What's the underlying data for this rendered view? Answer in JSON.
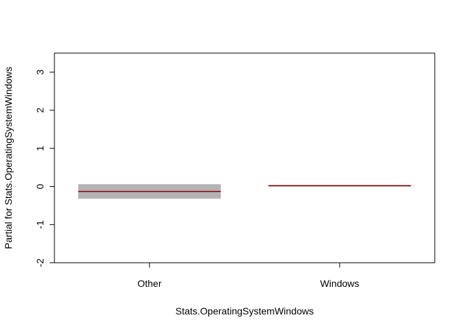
{
  "chart_data": {
    "type": "termplot",
    "xlabel": "Stats.OperatingSystemWindows",
    "ylabel": "Partial for Stats.OperatingSystemWindows",
    "ylim": [
      -2,
      3.5
    ],
    "y_ticks": [
      -2,
      -1,
      0,
      1,
      2,
      3
    ],
    "categories": [
      "Other",
      "Windows"
    ],
    "estimates": [
      -0.13,
      0.02
    ],
    "se_lower": [
      -0.32,
      0.0
    ],
    "se_upper": [
      0.06,
      0.04
    ],
    "colors": {
      "estimate": "#8b0000",
      "band": "#b3b3b3",
      "axis": "#000000"
    }
  }
}
